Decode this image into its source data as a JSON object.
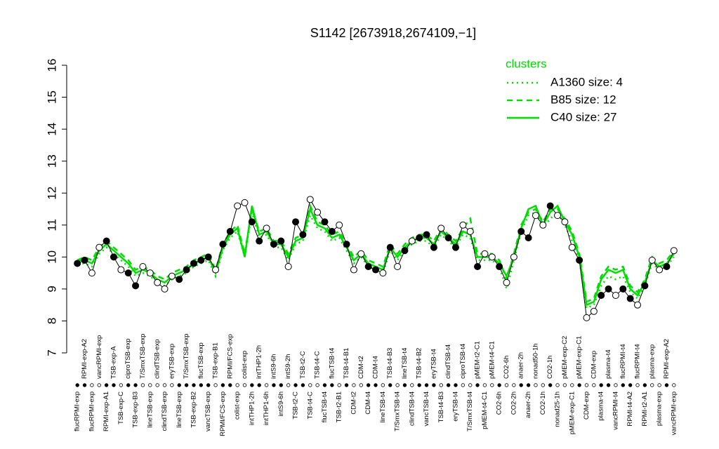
{
  "chart_data": {
    "type": "line",
    "title": "S1142 [2673918,2674109,−1]",
    "categories": [
      "flucRPMI-exp",
      "RPMI-exp-A2",
      "flucRPMI-exp",
      "vancRPMI-exp",
      "RPMI-exp-A1",
      "TSB-exp-A",
      "TSB-exp-C",
      "ciproTSB-exp",
      "TSB-exp-B3",
      "T/SmxTSB-exp",
      "lineTSB-exp",
      "clindTSB-exp",
      "clindTSB-exp",
      "eryTSB-exp",
      "lineTSB-exp",
      "T/SmxTSB-exp",
      "TSB-exp-B2",
      "flucTSB-exp",
      "vancTSB-exp",
      "TSB-exp-B1",
      "RPMI/FCS-exp",
      "RPMI/FCS-exp",
      "colist-exp",
      "colist-exp",
      "intTHP1-2h",
      "intTHP1-2h",
      "intTHP1-6h",
      "intS9-6h",
      "intS9-6h",
      "intS9-2h",
      "TSB-t2-C",
      "TSB-t2-C",
      "TSB-t4-C",
      "TSB-t4-C",
      "flucTSB-t4",
      "flucTSB-t4",
      "TSB-t2-B1",
      "TSB-t4-B1",
      "CDM-t2",
      "CDM-t2",
      "CDM-t4",
      "CDM-t4",
      "lineTSB-t4",
      "TSB-t4-B3",
      "T/SmxTSB-t4",
      "lineTSB-t4",
      "clindTSB-t4",
      "TSB-t4-B2",
      "vancTSB-t4",
      "eryTSB-t4",
      "TSB-t4-B3",
      "clindTSB-t4",
      "eryTSB-t4",
      "ciproTSB-t4",
      "T/SmxTSB-t4",
      "pMEM-t2-C1",
      "pMEM-t4-C1",
      "pMEM-t4-C1",
      "CO2-6h",
      "CO2-6h",
      "CO2-2h",
      "anaer-2h",
      "anaer-2h",
      "nonad50-1h",
      "CO2-1h",
      "CO2-1h",
      "nonad25-1h",
      "pMEM-exp-C2",
      "pMEM-exp-C1",
      "pMEM-exp-C1",
      "CDM-exp",
      "CDM-exp",
      "plasma-t4",
      "plasma-t4",
      "vancRPMI-t4",
      "flucRPMI-t4",
      "RPMI-t4-A2",
      "flucRPMI-t4",
      "RPMI-t2-A1",
      "plasma-exp",
      "plasma-exp",
      "RPMI-exp-A2",
      "vancRPMI-exp"
    ],
    "values": [
      9.8,
      9.9,
      9.5,
      10.3,
      10.5,
      10.0,
      9.6,
      9.5,
      9.1,
      9.7,
      9.5,
      9.2,
      9.0,
      9.4,
      9.3,
      9.6,
      9.8,
      9.9,
      10.0,
      9.6,
      10.4,
      10.8,
      11.6,
      11.7,
      11.1,
      10.5,
      10.9,
      10.4,
      10.5,
      9.7,
      11.1,
      10.7,
      11.8,
      11.4,
      11.1,
      10.8,
      11.0,
      10.4,
      9.6,
      10.1,
      9.7,
      9.6,
      9.5,
      10.3,
      9.7,
      10.2,
      10.5,
      10.6,
      10.7,
      10.3,
      10.9,
      10.6,
      10.3,
      11.0,
      10.8,
      9.7,
      10.1,
      10.0,
      9.7,
      9.2,
      10.0,
      10.8,
      10.6,
      11.3,
      11.0,
      11.6,
      11.3,
      11.1,
      10.3,
      9.9,
      8.1,
      8.3,
      8.8,
      9.0,
      8.8,
      9.0,
      8.7,
      8.5,
      9.1,
      9.9,
      9.6,
      9.7,
      10.2
    ],
    "filled": [
      true,
      true,
      false,
      false,
      true,
      true,
      false,
      true,
      true,
      false,
      false,
      false,
      false,
      false,
      true,
      true,
      true,
      true,
      true,
      false,
      true,
      true,
      false,
      false,
      true,
      true,
      false,
      true,
      true,
      false,
      true,
      true,
      false,
      false,
      true,
      true,
      false,
      true,
      false,
      false,
      true,
      true,
      false,
      true,
      false,
      true,
      false,
      true,
      true,
      true,
      false,
      true,
      true,
      false,
      false,
      true,
      false,
      false,
      true,
      false,
      false,
      true,
      true,
      false,
      false,
      true,
      false,
      false,
      false,
      true,
      false,
      false,
      true,
      true,
      false,
      true,
      true,
      false,
      true,
      false,
      false,
      true,
      false
    ],
    "legend_title": "clusters",
    "series": [
      {
        "name": "A1360 size: 4",
        "color": "#00dd00",
        "dash": "dotted",
        "values": [
          9.8,
          9.8,
          9.7,
          10.1,
          10.3,
          10.1,
          9.9,
          9.7,
          9.4,
          9.5,
          9.4,
          9.2,
          9.1,
          9.3,
          9.4,
          9.5,
          9.7,
          9.8,
          9.9,
          9.4,
          10.2,
          10.6,
          10.8,
          10.0,
          11.4,
          10.6,
          10.7,
          10.3,
          10.3,
          9.9,
          10.4,
          10.5,
          11.3,
          10.9,
          10.8,
          10.5,
          10.6,
          10.2,
          9.8,
          10.0,
          9.7,
          9.6,
          9.5,
          10.2,
          9.9,
          10.2,
          10.4,
          10.5,
          10.5,
          10.3,
          10.7,
          10.5,
          10.3,
          10.7,
          10.6,
          9.9,
          9.9,
          9.9,
          9.7,
          9.0,
          9.9,
          10.8,
          11.3,
          11.4,
          10.9,
          11.2,
          11.4,
          11.0,
          10.5,
          9.9,
          8.4,
          8.5,
          9.1,
          9.4,
          9.3,
          9.4,
          8.9,
          8.7,
          9.1,
          9.8,
          9.6,
          9.7,
          10.0
        ]
      },
      {
        "name": "B85 size: 12",
        "color": "#00dd00",
        "dash": "dashed",
        "values": [
          9.9,
          10.0,
          9.9,
          10.3,
          10.5,
          10.3,
          10.1,
          9.9,
          9.6,
          9.7,
          9.6,
          9.4,
          9.3,
          9.5,
          9.6,
          9.7,
          9.9,
          10.0,
          10.1,
          9.6,
          10.4,
          10.8,
          11.0,
          10.1,
          11.5,
          10.8,
          10.9,
          10.5,
          10.5,
          10.1,
          10.6,
          10.7,
          11.6,
          11.1,
          11.0,
          10.7,
          10.8,
          10.4,
          10.0,
          10.2,
          9.9,
          9.8,
          9.7,
          10.4,
          10.1,
          10.4,
          10.6,
          10.7,
          10.7,
          10.5,
          10.9,
          10.7,
          10.5,
          10.9,
          11.2,
          10.1,
          10.1,
          10.1,
          9.9,
          9.3,
          10.1,
          11.0,
          11.4,
          11.5,
          11.1,
          11.5,
          11.5,
          11.2,
          10.8,
          10.1,
          8.6,
          8.7,
          9.4,
          9.7,
          9.6,
          9.7,
          9.1,
          8.9,
          9.3,
          10.0,
          9.8,
          9.9,
          10.2
        ]
      },
      {
        "name": "C40 size: 27",
        "color": "#00dd00",
        "dash": "solid",
        "values": [
          9.9,
          9.9,
          9.8,
          10.2,
          10.4,
          10.2,
          10.0,
          9.8,
          9.5,
          9.6,
          9.5,
          9.3,
          9.2,
          9.4,
          9.5,
          9.6,
          9.8,
          9.9,
          10.0,
          9.5,
          10.3,
          10.7,
          10.9,
          10.0,
          11.6,
          10.7,
          10.8,
          10.4,
          10.4,
          10.0,
          10.5,
          10.6,
          11.5,
          11.0,
          10.9,
          10.6,
          10.7,
          10.3,
          9.9,
          10.1,
          9.8,
          9.7,
          9.6,
          10.3,
          10.0,
          10.3,
          10.5,
          10.6,
          10.6,
          10.4,
          10.8,
          10.6,
          10.4,
          10.8,
          10.7,
          10.0,
          10.0,
          10.0,
          9.8,
          9.4,
          10.0,
          10.9,
          11.5,
          11.6,
          11.0,
          11.4,
          11.6,
          11.1,
          10.7,
          10.0,
          8.5,
          8.6,
          9.3,
          9.6,
          9.5,
          9.6,
          9.0,
          8.8,
          9.2,
          9.9,
          9.7,
          9.8,
          10.1
        ]
      }
    ],
    "ylim": [
      7,
      16
    ],
    "yticks": [
      7,
      8,
      9,
      10,
      11,
      12,
      13,
      14,
      15,
      16
    ]
  }
}
